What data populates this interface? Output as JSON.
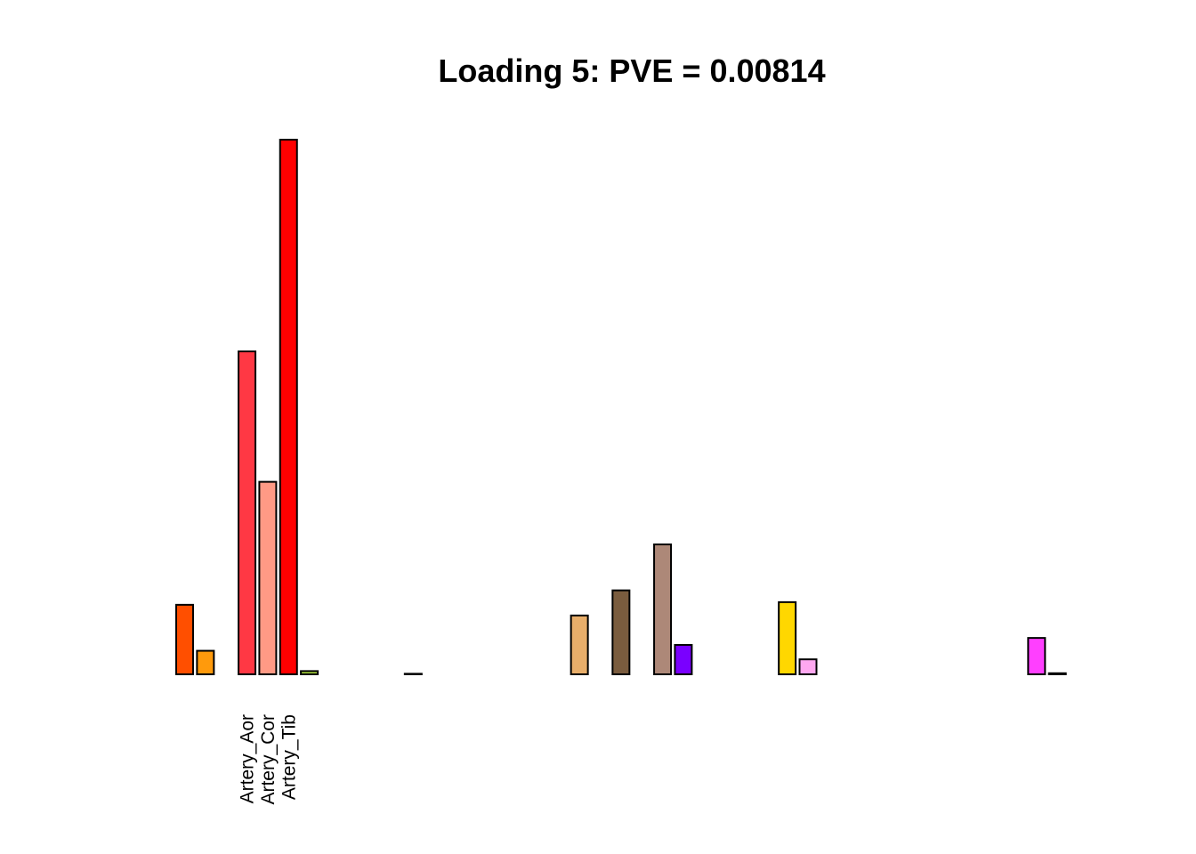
{
  "chart_data": {
    "type": "bar",
    "title": "Loading 5: PVE = 0.00814",
    "xlabel": "",
    "ylabel": "",
    "ylim": [
      0,
      1
    ],
    "grid": false,
    "axes_visible": false,
    "bar_border_color": "#000000",
    "categories": [
      "",
      "",
      "",
      "Artery_Aor",
      "Artery_Cor",
      "Artery_Tib",
      "",
      "",
      "",
      "",
      "",
      "",
      "",
      "",
      "",
      "",
      "",
      "",
      "",
      "",
      "",
      "",
      "",
      "",
      "",
      "",
      "",
      "",
      "",
      "",
      "",
      "",
      "",
      "",
      "",
      "",
      "",
      "",
      "",
      "",
      "",
      "",
      "",
      ""
    ],
    "values": [
      0.13,
      0.044,
      0.0,
      0.604,
      0.36,
      1.0,
      0.006,
      0.0,
      0.0,
      0.0,
      0.0,
      0.001,
      0.0,
      0.0,
      0.0,
      0.0,
      0.0,
      0.0,
      0.0,
      0.11,
      0.0,
      0.157,
      0.0,
      0.243,
      0.055,
      0.0,
      0.0,
      0.0,
      0.0,
      0.135,
      0.028,
      0.0,
      0.0,
      0.0,
      0.0,
      0.0,
      0.0,
      0.0,
      0.0,
      0.0,
      0.0,
      0.068,
      0.002,
      0.0
    ],
    "colors": [
      "#FF4F00",
      "#FF9A0C",
      "#000000",
      "#FF3844",
      "#FF9A85",
      "#FF0000",
      "#A5D13A",
      "#000000",
      "#000000",
      "#000000",
      "#000000",
      "#000000",
      "#000000",
      "#000000",
      "#000000",
      "#000000",
      "#000000",
      "#000000",
      "#000000",
      "#E8AE6A",
      "#000000",
      "#7A5C3E",
      "#000000",
      "#AD8878",
      "#7A00FF",
      "#000000",
      "#000000",
      "#000000",
      "#000000",
      "#FFD700",
      "#FFA8F0",
      "#000000",
      "#000000",
      "#000000",
      "#000000",
      "#000000",
      "#000000",
      "#000000",
      "#000000",
      "#000000",
      "#000000",
      "#FF3FFF",
      "#000000",
      "#000000"
    ]
  }
}
